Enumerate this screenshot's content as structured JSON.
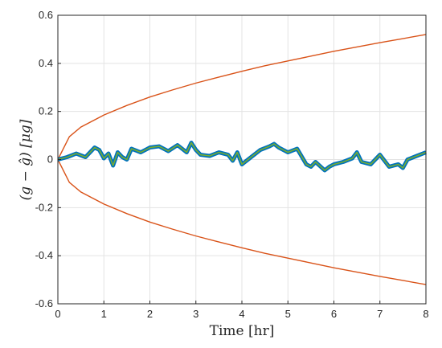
{
  "chart_data": {
    "type": "line",
    "xlabel": "Time [hr]",
    "ylabel": "(g − ĝ)  [μg]",
    "xlim": [
      0,
      8
    ],
    "ylim": [
      -0.6,
      0.6
    ],
    "x_ticks": [
      "0",
      "1",
      "2",
      "3",
      "4",
      "5",
      "6",
      "7",
      "8"
    ],
    "y_ticks": [
      "0.6",
      "0.4",
      "0.2",
      "0",
      "-0.2",
      "-0.4",
      "-0.6"
    ],
    "grid": true,
    "colors": {
      "bound": "#d95319",
      "error_outer": "#0072bd",
      "error_inner": "#77ac30"
    },
    "series": [
      {
        "role": "upper-bound",
        "x": [
          0,
          0.25,
          0.5,
          1,
          1.5,
          2,
          2.5,
          3,
          3.5,
          4,
          4.5,
          5,
          5.5,
          6,
          6.5,
          7,
          7.5,
          8
        ],
        "values": [
          0,
          0.095,
          0.135,
          0.185,
          0.225,
          0.26,
          0.29,
          0.318,
          0.343,
          0.367,
          0.39,
          0.41,
          0.43,
          0.45,
          0.468,
          0.486,
          0.503,
          0.52
        ]
      },
      {
        "role": "lower-bound",
        "x": [
          0,
          0.25,
          0.5,
          1,
          1.5,
          2,
          2.5,
          3,
          3.5,
          4,
          4.5,
          5,
          5.5,
          6,
          6.5,
          7,
          7.5,
          8
        ],
        "values": [
          0,
          -0.095,
          -0.135,
          -0.185,
          -0.225,
          -0.26,
          -0.29,
          -0.318,
          -0.343,
          -0.367,
          -0.39,
          -0.41,
          -0.43,
          -0.45,
          -0.468,
          -0.486,
          -0.503,
          -0.52
        ]
      },
      {
        "role": "estimation-error",
        "x": [
          0,
          0.2,
          0.4,
          0.6,
          0.8,
          0.9,
          1.0,
          1.1,
          1.2,
          1.3,
          1.4,
          1.5,
          1.6,
          1.8,
          2.0,
          2.2,
          2.4,
          2.6,
          2.8,
          2.9,
          3.0,
          3.1,
          3.3,
          3.5,
          3.7,
          3.8,
          3.9,
          4.0,
          4.2,
          4.4,
          4.6,
          4.7,
          4.8,
          5.0,
          5.2,
          5.4,
          5.5,
          5.6,
          5.8,
          5.9,
          6.0,
          6.2,
          6.4,
          6.5,
          6.6,
          6.8,
          7.0,
          7.2,
          7.4,
          7.5,
          7.6,
          7.8,
          8.0
        ],
        "values": [
          0.0,
          0.01,
          0.025,
          0.01,
          0.05,
          0.04,
          0.005,
          0.025,
          -0.025,
          0.03,
          0.01,
          0.0,
          0.045,
          0.03,
          0.05,
          0.055,
          0.035,
          0.06,
          0.03,
          0.07,
          0.04,
          0.02,
          0.015,
          0.03,
          0.02,
          -0.005,
          0.03,
          -0.02,
          0.01,
          0.04,
          0.055,
          0.065,
          0.05,
          0.03,
          0.045,
          -0.02,
          -0.03,
          -0.01,
          -0.045,
          -0.03,
          -0.02,
          -0.01,
          0.005,
          0.03,
          -0.01,
          -0.02,
          0.02,
          -0.03,
          -0.02,
          -0.035,
          0.0,
          0.015,
          0.03
        ]
      }
    ]
  }
}
